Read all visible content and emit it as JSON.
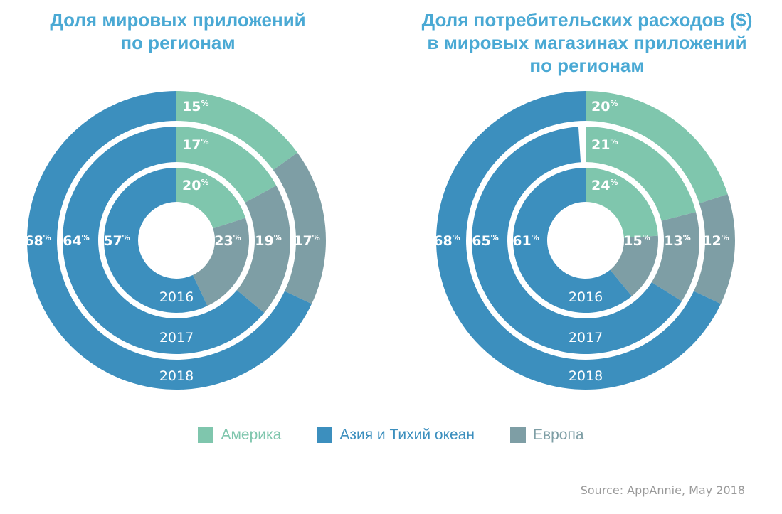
{
  "chart_data": [
    {
      "type": "donut",
      "title_lines": [
        "Доля мировых приложений",
        "по регионам"
      ],
      "rings": [
        {
          "year": "2016",
          "values": [
            20,
            57,
            23
          ]
        },
        {
          "year": "2017",
          "values": [
            17,
            64,
            19
          ]
        },
        {
          "year": "2018",
          "values": [
            15,
            68,
            17
          ]
        }
      ],
      "series_order": [
        "Америка",
        "Азия и Тихий океан",
        "Европа"
      ],
      "value_unit": "%"
    },
    {
      "type": "donut",
      "title_lines": [
        "Доля потребительских расходов ($)",
        "в мировых магазинах приложений",
        "по регионам"
      ],
      "rings": [
        {
          "year": "2016",
          "values": [
            24,
            61,
            15
          ]
        },
        {
          "year": "2017",
          "values": [
            21,
            65,
            13
          ]
        },
        {
          "year": "2018",
          "values": [
            20,
            68,
            12
          ]
        }
      ],
      "series_order": [
        "Америка",
        "Азия и Тихий океан",
        "Европа"
      ],
      "value_unit": "%"
    }
  ],
  "legend": [
    {
      "label": "Америка",
      "color": "#7fc6ad"
    },
    {
      "label": "Азия и Тихий океан",
      "color": "#3c8fbe"
    },
    {
      "label": "Европа",
      "color": "#7e9ea5"
    }
  ],
  "source": "Source: AppAnnie, May 2018"
}
